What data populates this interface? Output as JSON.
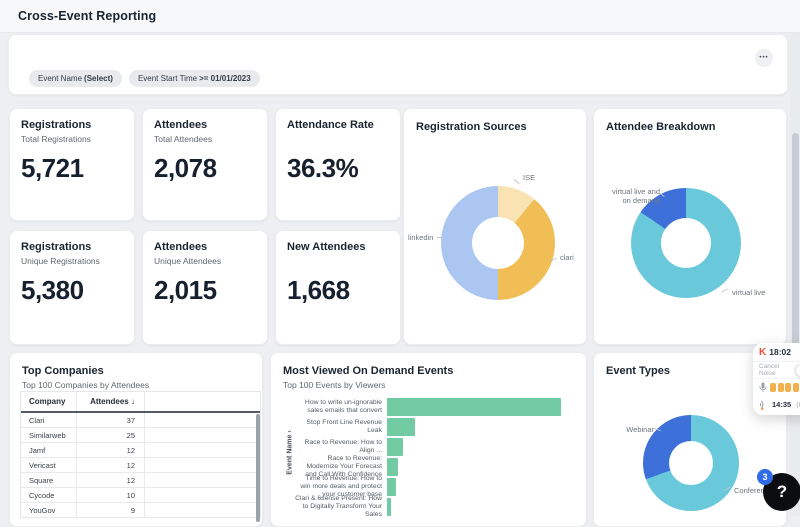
{
  "page": {
    "title": "Cross-Event Reporting"
  },
  "filter_bar": {
    "chips": [
      {
        "plain": "Event Name",
        "bold": "(Select)"
      },
      {
        "plain": "Event Start Time",
        "bold": ">= 01/01/2023"
      }
    ],
    "more_glyph": "•••"
  },
  "kpis": [
    {
      "title": "Registrations",
      "subtitle": "Total Registrations",
      "value": "5,721"
    },
    {
      "title": "Attendees",
      "subtitle": "Total Attendees",
      "value": "2,078"
    },
    {
      "title": "Attendance Rate",
      "subtitle": "",
      "value": "36.3%"
    },
    {
      "title": "Registrations",
      "subtitle": "Unique Registrations",
      "value": "5,380"
    },
    {
      "title": "Attendees",
      "subtitle": "Unique Attendees",
      "value": "2,015"
    },
    {
      "title": "New Attendees",
      "subtitle": "",
      "value": "1,668"
    }
  ],
  "cards": {
    "registration_sources": {
      "title": "Registration Sources"
    },
    "attendee_breakdown": {
      "title": "Attendee Breakdown"
    },
    "top_companies": {
      "title": "Top Companies",
      "subtitle": "Top 100 Companies by Attendees",
      "sort_indicator": "↓"
    },
    "most_viewed": {
      "title": "Most Viewed On Demand Events",
      "subtitle": "Top 100 Events by Viewers"
    },
    "event_types": {
      "title": "Event Types"
    }
  },
  "chart_data": [
    {
      "id": "registration_sources",
      "type": "pie",
      "donut": true,
      "title": "Registration Sources",
      "labels": [
        "ISE",
        "clari",
        "linkedin"
      ],
      "values_pct": [
        11,
        39,
        50
      ],
      "colors": [
        "#fae3b2",
        "#f0be55",
        "#abc6f0"
      ]
    },
    {
      "id": "attendee_breakdown",
      "type": "pie",
      "donut": true,
      "title": "Attendee Breakdown",
      "labels": [
        "virtual live",
        "virtual live and on demand"
      ],
      "values_pct": [
        84.5,
        15.5
      ],
      "colors": [
        "#69c9db",
        "#3e70d9"
      ]
    },
    {
      "id": "most_viewed_on_demand_events",
      "type": "bar",
      "orientation": "horizontal",
      "title": "Most Viewed On Demand Events",
      "subtitle": "Top 100 Events by Viewers",
      "ylabel": "Event Name",
      "categories": [
        "How to write un-ignorable sales emails that convert",
        "Stop Front Line Revenue Leak",
        "Race to Revenue: How to Align ...",
        "Race to Revenue: Modernize Your Forecast and Call With Confidence",
        "Time to Revenue: How to win more deals and protect your customer base",
        "Clari & 6sense Present: How to Digitally Transform Your Sales"
      ],
      "values_relative_pct_of_max": [
        100,
        16,
        9,
        6.5,
        5,
        2.5
      ],
      "bar_color": "#72cba3"
    },
    {
      "id": "event_types",
      "type": "pie",
      "donut": true,
      "title": "Event Types",
      "labels": [
        "Conference",
        "Webinar"
      ],
      "values_pct": [
        69.5,
        30.5
      ],
      "colors": [
        "#69c9db",
        "#3e70d9"
      ]
    },
    {
      "id": "top_companies",
      "type": "table",
      "title": "Top Companies",
      "subtitle": "Top 100 Companies by Attendees",
      "columns": [
        "Company",
        "Attendees"
      ],
      "sort": {
        "column": "Attendees",
        "direction": "desc"
      },
      "rows": [
        [
          "Clari",
          "37"
        ],
        [
          "Similarweb",
          "25"
        ],
        [
          "Jamf",
          "12"
        ],
        [
          "Vericast",
          "12"
        ],
        [
          "Square",
          "12"
        ],
        [
          "Cycode",
          "10"
        ],
        [
          "YouGov",
          "9"
        ]
      ]
    }
  ],
  "overlay": {
    "krisp": {
      "logo_glyph": "K",
      "time": "18:02",
      "cancel_noise_label": "Cancel Noise",
      "talk_time": "14:35",
      "talk_pct_partial": "(8",
      "meter_colors": [
        "#f2b04e",
        "#f2b04e",
        "#f2b04e",
        "#f2b04e",
        "#ee7a52"
      ]
    },
    "help": {
      "glyph": "?",
      "badge_count": "3"
    }
  }
}
